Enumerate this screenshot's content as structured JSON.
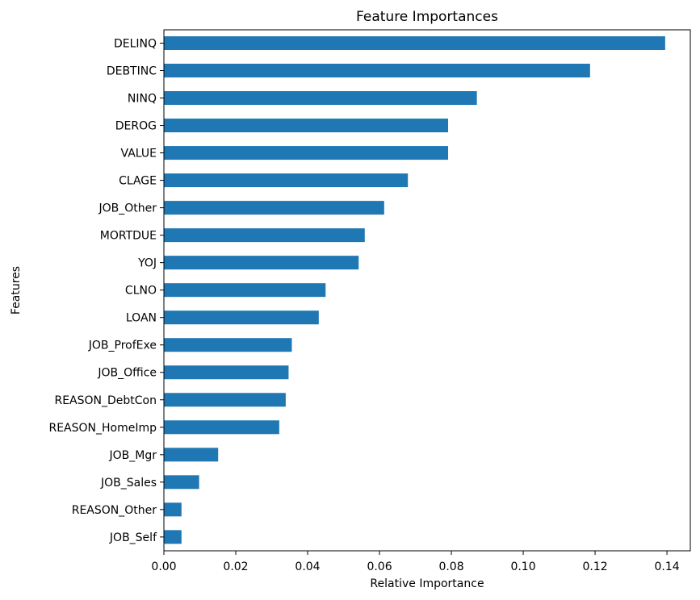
{
  "chart_data": {
    "type": "bar",
    "orientation": "horizontal",
    "title": "Feature Importances",
    "xlabel": "Relative Importance",
    "ylabel": "Features",
    "xlim": [
      0,
      0.1465
    ],
    "xticks": [
      "0.00",
      "0.02",
      "0.04",
      "0.06",
      "0.08",
      "0.10",
      "0.12",
      "0.14"
    ],
    "grid": false,
    "legend": "none",
    "bar_color": "#1f77b4",
    "categories": [
      "DELINQ",
      "DEBTINC",
      "NINQ",
      "DEROG",
      "VALUE",
      "CLAGE",
      "JOB_Other",
      "MORTDUE",
      "YOJ",
      "CLNO",
      "LOAN",
      "JOB_ProfExe",
      "JOB_Office",
      "REASON_DebtCon",
      "REASON_HomeImp",
      "JOB_Mgr",
      "JOB_Sales",
      "REASON_Other",
      "JOB_Self"
    ],
    "values": [
      0.1395,
      0.1186,
      0.0871,
      0.0791,
      0.0791,
      0.0679,
      0.0613,
      0.0559,
      0.0542,
      0.045,
      0.0431,
      0.0356,
      0.0347,
      0.0339,
      0.0321,
      0.0151,
      0.0098,
      0.0049,
      0.0049
    ]
  }
}
